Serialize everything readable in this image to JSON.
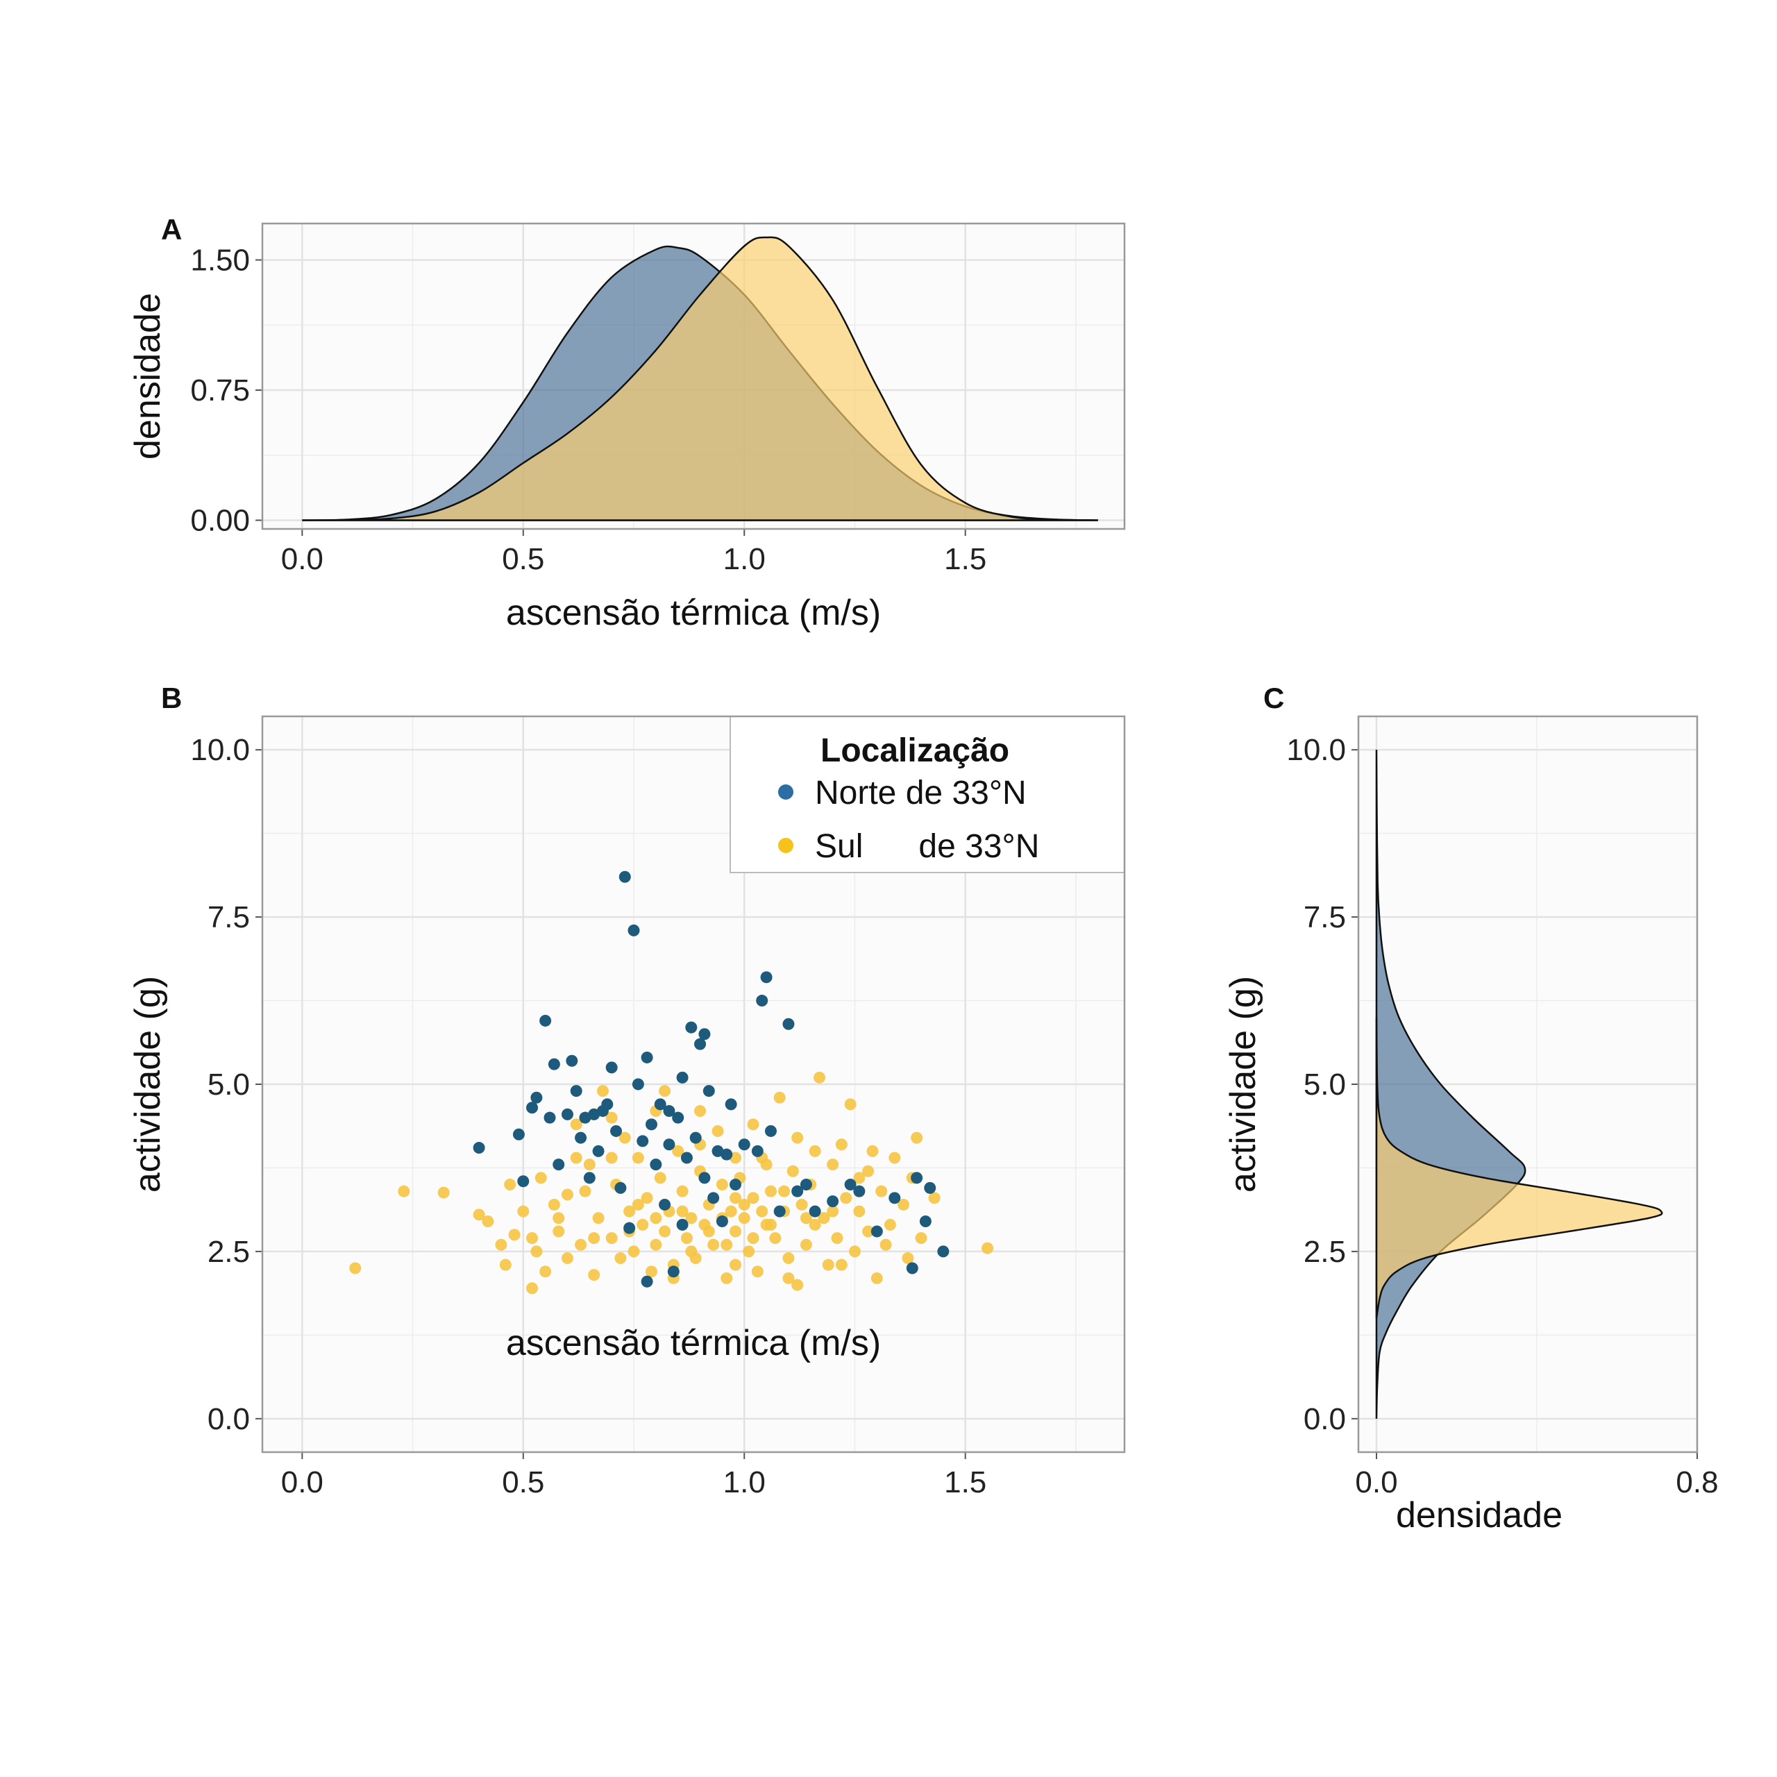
{
  "colors": {
    "north": "#1d5a7c",
    "north_legend": "#2c6ea3",
    "north_fill": "#5f7f9e",
    "south": "#f6c443",
    "south_legend": "#f7c21a",
    "south_fill": "#fcd88f",
    "panel_bg": "#fbfbfb",
    "grid": "#e2e2e2",
    "frame": "#999999"
  },
  "chart_data": [
    {
      "panel": "A",
      "type": "area",
      "xlabel": "ascensão térmica (m/s)",
      "ylabel": "densidade",
      "xlim": [
        -0.09,
        1.86
      ],
      "ylim": [
        -0.05,
        1.71
      ],
      "xticks": [
        0.0,
        0.5,
        1.0,
        1.5
      ],
      "yticks": [
        0.0,
        0.75,
        1.5
      ],
      "xtick_labels": [
        "0.0",
        "0.5",
        "1.0",
        "1.5"
      ],
      "ytick_labels": [
        "0.00",
        "0.75",
        "1.50"
      ],
      "grid": true,
      "series": [
        {
          "key": "north",
          "x": [
            0.0,
            0.1,
            0.2,
            0.3,
            0.4,
            0.5,
            0.6,
            0.7,
            0.8,
            0.85,
            0.9,
            1.0,
            1.1,
            1.2,
            1.3,
            1.4,
            1.5,
            1.6,
            1.7,
            1.8
          ],
          "y": [
            0.0,
            0.004,
            0.03,
            0.12,
            0.33,
            0.68,
            1.08,
            1.4,
            1.56,
            1.57,
            1.52,
            1.3,
            0.98,
            0.67,
            0.4,
            0.2,
            0.08,
            0.025,
            0.005,
            0.0
          ]
        },
        {
          "key": "south",
          "x": [
            0.0,
            0.1,
            0.2,
            0.3,
            0.4,
            0.5,
            0.6,
            0.7,
            0.8,
            0.9,
            1.0,
            1.05,
            1.1,
            1.2,
            1.3,
            1.4,
            1.5,
            1.6,
            1.7,
            1.8
          ],
          "y": [
            0.0,
            0.002,
            0.01,
            0.05,
            0.16,
            0.33,
            0.5,
            0.71,
            0.98,
            1.3,
            1.58,
            1.63,
            1.58,
            1.27,
            0.77,
            0.32,
            0.1,
            0.022,
            0.004,
            0.0
          ]
        }
      ]
    },
    {
      "panel": "B",
      "type": "scatter",
      "xlabel": "ascensão térmica (m/s)",
      "ylabel": "actividade (g)",
      "xlim": [
        -0.09,
        1.86
      ],
      "ylim": [
        -0.5,
        10.5
      ],
      "xticks": [
        0.0,
        0.5,
        1.0,
        1.5
      ],
      "yticks": [
        0.0,
        2.5,
        5.0,
        7.5,
        10.0
      ],
      "xtick_labels": [
        "0.0",
        "0.5",
        "1.0",
        "1.5"
      ],
      "ytick_labels": [
        "0.0",
        "2.5",
        "5.0",
        "7.5",
        "10.0"
      ],
      "grid": true,
      "legend_position": "top-right",
      "legend": {
        "title": "Localização",
        "entries": [
          {
            "key": "north",
            "label": "Norte de 33°N"
          },
          {
            "key": "south",
            "label": "Sul      de 33°N"
          }
        ]
      },
      "series": [
        {
          "key": "south",
          "points": [
            [
              0.12,
              2.25
            ],
            [
              0.23,
              3.4
            ],
            [
              0.32,
              3.38
            ],
            [
              0.4,
              3.05
            ],
            [
              0.42,
              2.95
            ],
            [
              0.45,
              2.6
            ],
            [
              0.46,
              2.3
            ],
            [
              0.48,
              2.75
            ],
            [
              0.5,
              3.1
            ],
            [
              0.52,
              1.95
            ],
            [
              0.53,
              2.5
            ],
            [
              0.54,
              3.6
            ],
            [
              0.55,
              2.2
            ],
            [
              0.57,
              3.2
            ],
            [
              0.58,
              2.8
            ],
            [
              0.6,
              3.35
            ],
            [
              0.62,
              4.4
            ],
            [
              0.63,
              2.6
            ],
            [
              0.65,
              3.8
            ],
            [
              0.66,
              2.15
            ],
            [
              0.67,
              3.0
            ],
            [
              0.68,
              4.9
            ],
            [
              0.7,
              2.7
            ],
            [
              0.71,
              3.5
            ],
            [
              0.72,
              2.4
            ],
            [
              0.73,
              4.2
            ],
            [
              0.74,
              3.1
            ],
            [
              0.75,
              2.5
            ],
            [
              0.76,
              3.9
            ],
            [
              0.77,
              2.9
            ],
            [
              0.78,
              3.3
            ],
            [
              0.79,
              2.2
            ],
            [
              0.8,
              4.6
            ],
            [
              0.81,
              3.6
            ],
            [
              0.82,
              2.8
            ],
            [
              0.83,
              3.1
            ],
            [
              0.84,
              2.3
            ],
            [
              0.85,
              4.0
            ],
            [
              0.86,
              3.4
            ],
            [
              0.87,
              2.7
            ],
            [
              0.88,
              3.0
            ],
            [
              0.89,
              2.4
            ],
            [
              0.9,
              3.7
            ],
            [
              0.91,
              2.9
            ],
            [
              0.92,
              3.2
            ],
            [
              0.93,
              2.6
            ],
            [
              0.94,
              4.3
            ],
            [
              0.95,
              3.5
            ],
            [
              0.96,
              2.1
            ],
            [
              0.97,
              3.1
            ],
            [
              0.98,
              2.8
            ],
            [
              0.99,
              3.6
            ],
            [
              1.0,
              3.0
            ],
            [
              1.01,
              2.5
            ],
            [
              1.02,
              3.3
            ],
            [
              1.03,
              2.2
            ],
            [
              1.04,
              3.9
            ],
            [
              1.05,
              2.9
            ],
            [
              1.06,
              3.4
            ],
            [
              1.07,
              2.7
            ],
            [
              1.08,
              4.8
            ],
            [
              1.09,
              3.1
            ],
            [
              1.1,
              2.4
            ],
            [
              1.11,
              3.7
            ],
            [
              1.12,
              2.0
            ],
            [
              1.13,
              3.2
            ],
            [
              1.14,
              2.6
            ],
            [
              1.15,
              3.5
            ],
            [
              1.16,
              2.9
            ],
            [
              1.17,
              5.1
            ],
            [
              1.18,
              3.0
            ],
            [
              1.19,
              2.3
            ],
            [
              1.2,
              3.8
            ],
            [
              1.21,
              2.7
            ],
            [
              1.22,
              4.1
            ],
            [
              1.23,
              3.3
            ],
            [
              1.24,
              4.7
            ],
            [
              1.25,
              2.5
            ],
            [
              1.26,
              3.6
            ],
            [
              1.28,
              2.8
            ],
            [
              1.29,
              4.0
            ],
            [
              1.3,
              2.1
            ],
            [
              1.31,
              3.4
            ],
            [
              1.33,
              2.9
            ],
            [
              1.34,
              3.9
            ],
            [
              1.36,
              3.2
            ],
            [
              1.37,
              2.4
            ],
            [
              1.39,
              4.2
            ],
            [
              1.4,
              2.7
            ],
            [
              1.43,
              3.3
            ],
            [
              1.55,
              2.55
            ],
            [
              0.62,
              3.9
            ],
            [
              0.7,
              4.5
            ],
            [
              0.82,
              4.9
            ],
            [
              0.9,
              4.6
            ],
            [
              1.02,
              4.4
            ],
            [
              1.12,
              4.2
            ],
            [
              0.76,
              3.2
            ],
            [
              0.8,
              3.0
            ],
            [
              0.86,
              3.1
            ],
            [
              0.92,
              2.8
            ],
            [
              0.98,
              3.3
            ],
            [
              1.04,
              3.1
            ],
            [
              1.06,
              2.9
            ],
            [
              1.0,
              3.2
            ],
            [
              0.95,
              3.0
            ],
            [
              1.09,
              3.4
            ],
            [
              0.88,
              2.5
            ],
            [
              1.14,
              3.0
            ],
            [
              0.74,
              2.8
            ],
            [
              1.2,
              3.1
            ],
            [
              0.58,
              3.0
            ],
            [
              0.66,
              2.7
            ],
            [
              1.26,
              3.1
            ],
            [
              1.32,
              2.6
            ],
            [
              0.52,
              2.7
            ],
            [
              0.98,
              2.3
            ],
            [
              1.1,
              2.1
            ],
            [
              0.84,
              2.1
            ],
            [
              1.38,
              3.6
            ],
            [
              1.16,
              4.0
            ],
            [
              0.64,
              3.4
            ],
            [
              0.7,
              3.9
            ],
            [
              0.98,
              3.9
            ],
            [
              1.05,
              3.8
            ],
            [
              0.9,
              4.1
            ],
            [
              0.8,
              2.6
            ],
            [
              1.22,
              2.3
            ],
            [
              0.6,
              2.4
            ],
            [
              0.47,
              3.5
            ],
            [
              1.28,
              3.7
            ],
            [
              0.96,
              2.6
            ],
            [
              1.02,
              2.7
            ]
          ]
        },
        {
          "key": "north",
          "points": [
            [
              0.4,
              4.05
            ],
            [
              0.49,
              4.25
            ],
            [
              0.5,
              3.55
            ],
            [
              0.52,
              4.65
            ],
            [
              0.53,
              4.8
            ],
            [
              0.55,
              5.95
            ],
            [
              0.56,
              4.5
            ],
            [
              0.57,
              5.3
            ],
            [
              0.58,
              3.8
            ],
            [
              0.6,
              4.55
            ],
            [
              0.61,
              5.35
            ],
            [
              0.62,
              4.9
            ],
            [
              0.63,
              4.2
            ],
            [
              0.64,
              4.5
            ],
            [
              0.65,
              3.6
            ],
            [
              0.66,
              4.55
            ],
            [
              0.67,
              4.0
            ],
            [
              0.68,
              4.6
            ],
            [
              0.69,
              4.7
            ],
            [
              0.7,
              5.25
            ],
            [
              0.71,
              4.3
            ],
            [
              0.72,
              3.45
            ],
            [
              0.73,
              8.1
            ],
            [
              0.74,
              2.85
            ],
            [
              0.75,
              7.3
            ],
            [
              0.76,
              5.0
            ],
            [
              0.77,
              4.15
            ],
            [
              0.78,
              5.4
            ],
            [
              0.79,
              4.4
            ],
            [
              0.8,
              3.8
            ],
            [
              0.81,
              4.7
            ],
            [
              0.82,
              3.2
            ],
            [
              0.83,
              4.1
            ],
            [
              0.84,
              2.2
            ],
            [
              0.85,
              4.5
            ],
            [
              0.86,
              5.1
            ],
            [
              0.87,
              3.9
            ],
            [
              0.88,
              5.85
            ],
            [
              0.89,
              4.2
            ],
            [
              0.9,
              5.6
            ],
            [
              0.91,
              3.6
            ],
            [
              0.92,
              4.9
            ],
            [
              0.93,
              3.3
            ],
            [
              0.94,
              4.0
            ],
            [
              0.95,
              2.95
            ],
            [
              0.96,
              3.95
            ],
            [
              0.97,
              4.7
            ],
            [
              0.98,
              3.5
            ],
            [
              1.0,
              4.1
            ],
            [
              1.03,
              4.0
            ],
            [
              1.04,
              6.25
            ],
            [
              1.05,
              6.6
            ],
            [
              1.06,
              4.3
            ],
            [
              1.08,
              3.1
            ],
            [
              1.1,
              5.9
            ],
            [
              1.12,
              3.4
            ],
            [
              1.14,
              3.5
            ],
            [
              1.16,
              3.1
            ],
            [
              1.2,
              3.25
            ],
            [
              1.24,
              3.5
            ],
            [
              1.26,
              3.4
            ],
            [
              1.3,
              2.8
            ],
            [
              1.34,
              3.3
            ],
            [
              1.38,
              2.25
            ],
            [
              1.39,
              3.6
            ],
            [
              1.41,
              2.95
            ],
            [
              1.42,
              3.45
            ],
            [
              1.45,
              2.5
            ],
            [
              0.78,
              2.05
            ],
            [
              0.83,
              4.6
            ],
            [
              0.91,
              5.75
            ],
            [
              0.86,
              2.9
            ]
          ]
        }
      ]
    },
    {
      "panel": "C",
      "type": "area",
      "xlabel": "densidade",
      "ylabel": "actividade (g)",
      "xlim": [
        -0.045,
        0.8
      ],
      "ylim": [
        -0.5,
        10.5
      ],
      "xticks": [
        0.0,
        0.8
      ],
      "yticks": [
        0.0,
        2.5,
        5.0,
        7.5,
        10.0
      ],
      "xtick_labels": [
        "0.0",
        "0.8"
      ],
      "ytick_labels": [
        "0.0",
        "2.5",
        "5.0",
        "7.5",
        "10.0"
      ],
      "grid": true,
      "orientation": "horizontal",
      "series": [
        {
          "key": "north",
          "y": [
            0.0,
            0.5,
            1.0,
            1.3,
            1.6,
            2.0,
            2.5,
            3.0,
            3.5,
            3.75,
            4.0,
            4.5,
            5.0,
            5.5,
            6.0,
            6.5,
            7.0,
            7.5,
            8.0,
            9.0,
            10.0
          ],
          "x": [
            0.0,
            0.002,
            0.008,
            0.025,
            0.05,
            0.09,
            0.16,
            0.26,
            0.35,
            0.37,
            0.33,
            0.24,
            0.16,
            0.1,
            0.056,
            0.03,
            0.015,
            0.007,
            0.003,
            0.001,
            0.0
          ]
        },
        {
          "key": "south",
          "y": [
            1.5,
            1.8,
            2.0,
            2.2,
            2.4,
            2.6,
            2.8,
            3.0,
            3.1,
            3.2,
            3.4,
            3.6,
            3.8,
            4.0,
            4.2,
            4.5,
            5.0,
            6.0
          ],
          "x": [
            0.0,
            0.008,
            0.02,
            0.05,
            0.12,
            0.27,
            0.48,
            0.68,
            0.71,
            0.66,
            0.47,
            0.27,
            0.13,
            0.06,
            0.025,
            0.008,
            0.002,
            0.0
          ]
        }
      ]
    }
  ]
}
